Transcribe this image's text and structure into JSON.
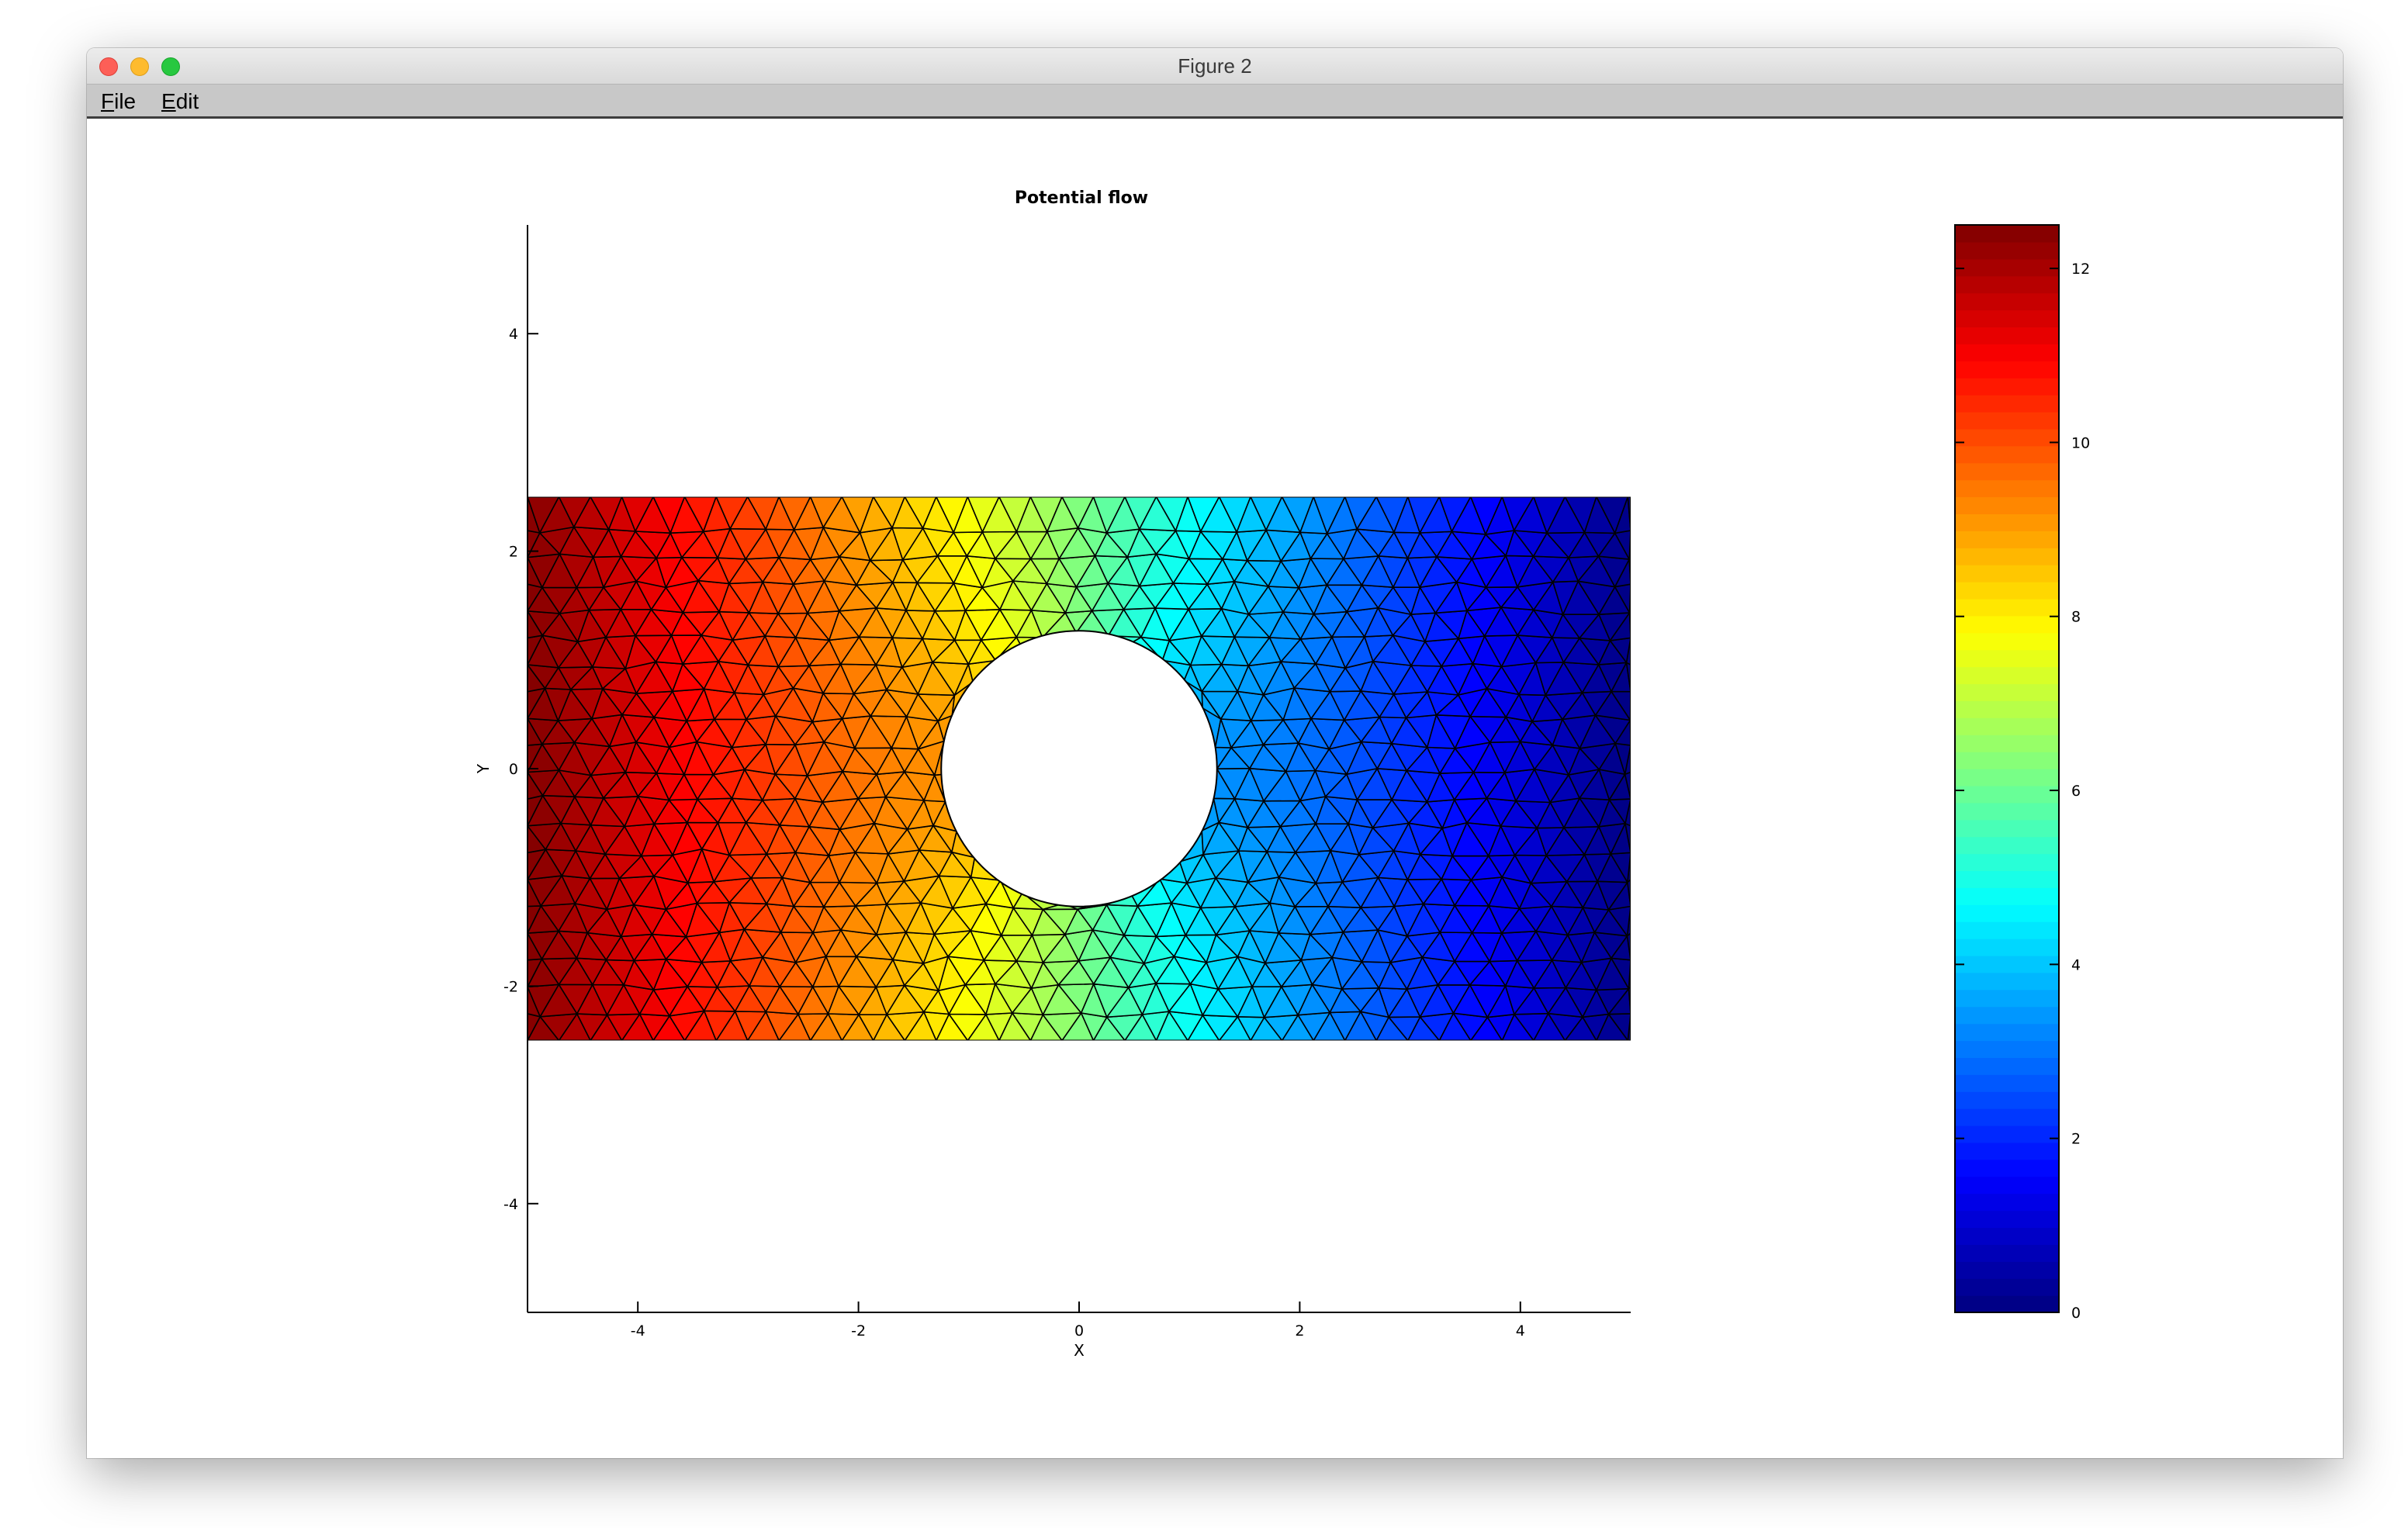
{
  "window": {
    "title": "Figure 2"
  },
  "menubar": {
    "file": {
      "mnemonic": "F",
      "rest": "ile"
    },
    "edit": {
      "mnemonic": "E",
      "rest": "dit"
    }
  },
  "chart_data": {
    "type": "heatmap",
    "title": "Potential flow",
    "xlabel": "X",
    "ylabel": "Y",
    "xlim": [
      -5,
      5
    ],
    "ylim": [
      -5,
      5
    ],
    "xticks": [
      -4,
      -2,
      0,
      2,
      4
    ],
    "yticks": [
      -4,
      -2,
      0,
      2,
      4
    ],
    "domain": {
      "x": [
        -5,
        5
      ],
      "y": [
        -2.5,
        2.5
      ]
    },
    "hole": {
      "center": [
        0,
        0
      ],
      "radius": 1.25
    },
    "value_range": [
      0,
      12.5
    ],
    "colormap": "jet",
    "mesh": "triangular",
    "field": "potential decreasing linearly with x, value 12.5 at x=-5 and 0 at x=5, distorted around the hole",
    "colorbar": {
      "ticks": [
        0,
        2,
        4,
        6,
        8,
        10,
        12
      ],
      "range": [
        0,
        12.5
      ]
    }
  }
}
